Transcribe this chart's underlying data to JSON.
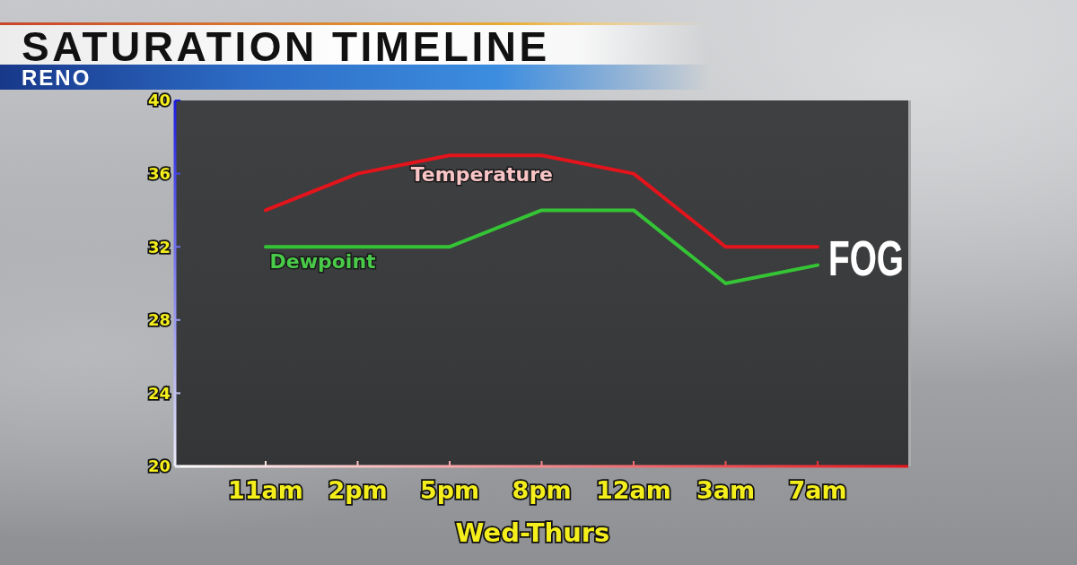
{
  "chart_data": {
    "type": "line",
    "title": "SATURATION TIMELINE",
    "subtitle": "RENO",
    "xlabel": "Wed-Thurs",
    "categories": [
      "11am",
      "2pm",
      "5pm",
      "8pm",
      "12am",
      "3am",
      "7am"
    ],
    "series": [
      {
        "name": "Temperature",
        "color": "#e3141b",
        "values": [
          34,
          36,
          37,
          37,
          36,
          32,
          32
        ]
      },
      {
        "name": "Dewpoint",
        "color": "#35c435",
        "values": [
          32,
          32,
          32,
          34,
          34,
          30,
          31
        ]
      }
    ],
    "ylim": [
      20,
      40
    ],
    "yticks": [
      20,
      24,
      28,
      32,
      36,
      40
    ],
    "annotations": [
      {
        "text": "FOG",
        "x": "7am",
        "y": 32
      }
    ],
    "marker": "none",
    "line_style": "solid"
  }
}
